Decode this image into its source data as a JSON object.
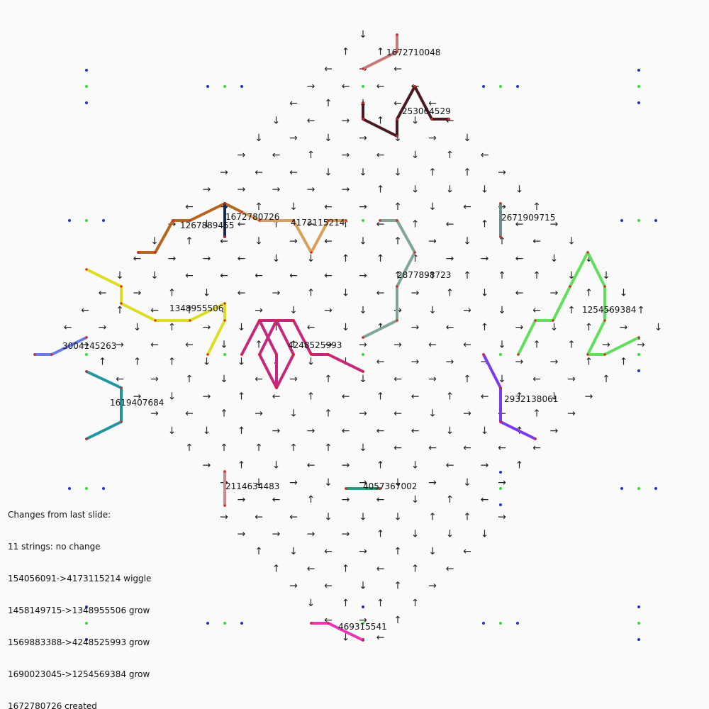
{
  "changes": {
    "lines": [
      "Changes from last slide:",
      "11 strings: no change",
      "154056091->4173115214 wiggle",
      "1458149715->1348955506 grow",
      "1569883388->4248525993 grow",
      "1690023045->1254569384 grow",
      "1672780726 created"
    ]
  },
  "strings": [
    {
      "id": "1672710048",
      "color": "#c97a78"
    },
    {
      "id": "253064529",
      "color": "#4a1a22"
    },
    {
      "id": "1267889455",
      "color": "#b5651d"
    },
    {
      "id": "1672780726",
      "color": "#1a2a55"
    },
    {
      "id": "4173115214",
      "color": "#d9a05b"
    },
    {
      "id": "2671909715",
      "color": "#6b8f8a"
    },
    {
      "id": "2877898723",
      "color": "#7fa595"
    },
    {
      "id": "1254569384",
      "color": "#5fe05a"
    },
    {
      "id": "1348955506",
      "color": "#dddd22"
    },
    {
      "id": "4248525993",
      "color": "#c7277a"
    },
    {
      "id": "3004145263",
      "color": "#6a7ae8"
    },
    {
      "id": "1619407684",
      "color": "#1f97a0"
    },
    {
      "id": "2932138061",
      "color": "#7b3af0"
    },
    {
      "id": "2114634483",
      "color": "#c98a88"
    },
    {
      "id": "4057367002",
      "color": "#1fa07a"
    },
    {
      "id": "469315541",
      "color": "#e838b8"
    }
  ]
}
